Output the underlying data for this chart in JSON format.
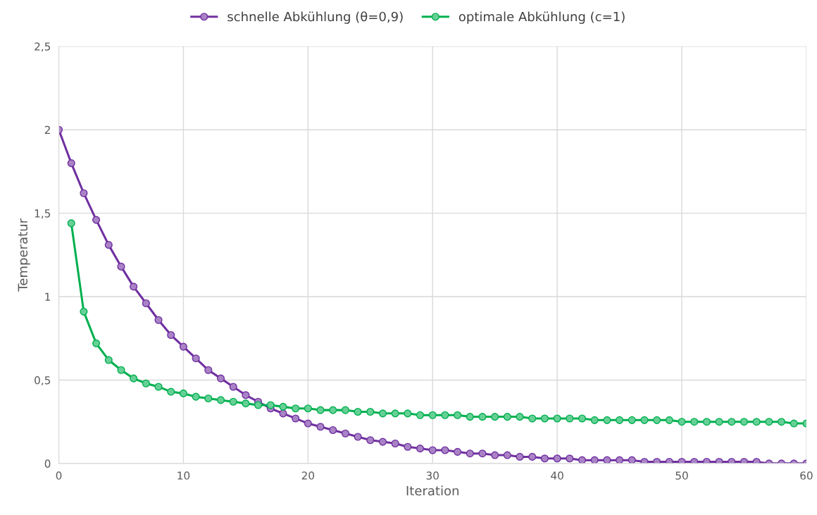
{
  "chart_data": {
    "type": "line",
    "xlabel": "Iteration",
    "ylabel": "Temperatur",
    "x": [
      0,
      1,
      2,
      3,
      4,
      5,
      6,
      7,
      8,
      9,
      10,
      11,
      12,
      13,
      14,
      15,
      16,
      17,
      18,
      19,
      20,
      21,
      22,
      23,
      24,
      25,
      26,
      27,
      28,
      29,
      30,
      31,
      32,
      33,
      34,
      35,
      36,
      37,
      38,
      39,
      40,
      41,
      42,
      43,
      44,
      45,
      46,
      47,
      48,
      49,
      50,
      51,
      52,
      53,
      54,
      55,
      56,
      57,
      58,
      59,
      60
    ],
    "series": [
      {
        "name": "schnelle Abkühlung (θ=0,9)",
        "color": "#7030a0",
        "values": [
          2,
          1.8,
          1.62,
          1.46,
          1.31,
          1.18,
          1.06,
          0.96,
          0.86,
          0.77,
          0.7,
          0.63,
          0.56,
          0.51,
          0.46,
          0.41,
          0.37,
          0.33,
          0.3,
          0.27,
          0.24,
          0.22,
          0.2,
          0.18,
          0.16,
          0.14,
          0.13,
          0.12,
          0.1,
          0.09,
          0.08,
          0.08,
          0.07,
          0.06,
          0.06,
          0.05,
          0.05,
          0.04,
          0.04,
          0.03,
          0.03,
          0.03,
          0.02,
          0.02,
          0.02,
          0.02,
          0.02,
          0.01,
          0.01,
          0.01,
          0.01,
          0.01,
          0.01,
          0.01,
          0.01,
          0.01,
          0.01,
          0,
          0,
          0,
          0
        ]
      },
      {
        "name": "optimale Abkühlung (c=1)",
        "color": "#00b050",
        "values": [
          null,
          1.44,
          0.91,
          0.72,
          0.62,
          0.56,
          0.51,
          0.48,
          0.46,
          0.43,
          0.42,
          0.4,
          0.39,
          0.38,
          0.37,
          0.36,
          0.35,
          0.35,
          0.34,
          0.33,
          0.33,
          0.32,
          0.32,
          0.32,
          0.31,
          0.31,
          0.3,
          0.3,
          0.3,
          0.29,
          0.29,
          0.29,
          0.29,
          0.28,
          0.28,
          0.28,
          0.28,
          0.28,
          0.27,
          0.27,
          0.27,
          0.27,
          0.27,
          0.26,
          0.26,
          0.26,
          0.26,
          0.26,
          0.26,
          0.26,
          0.25,
          0.25,
          0.25,
          0.25,
          0.25,
          0.25,
          0.25,
          0.25,
          0.25,
          0.24,
          0.24
        ]
      }
    ],
    "xlim": [
      0,
      60
    ],
    "xticks": [
      0,
      10,
      20,
      30,
      40,
      50,
      60
    ],
    "ylim": [
      0,
      2.5
    ],
    "yticks": [
      {
        "value": 0,
        "label": "0"
      },
      {
        "value": 0.5,
        "label": "0,5"
      },
      {
        "value": 1,
        "label": "1"
      },
      {
        "value": 1.5,
        "label": "1,5"
      },
      {
        "value": 2,
        "label": "2"
      },
      {
        "value": 2.5,
        "label": "2,5"
      }
    ],
    "grid": true,
    "legend": "top",
    "marker": "circle",
    "line_style": "solid"
  }
}
